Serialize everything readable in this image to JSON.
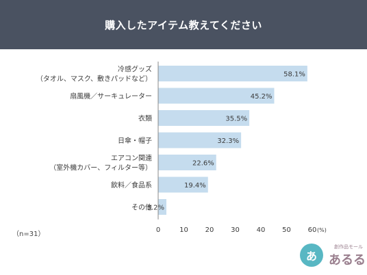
{
  "header": {
    "title": "購入したアイテム教えてください"
  },
  "note": "（n=31）",
  "logo": {
    "mark": "あ",
    "subtitle": "創作品モール",
    "name": "あるる"
  },
  "chart_data": {
    "type": "bar",
    "orientation": "horizontal",
    "categories": [
      [
        "冷感グッズ",
        "（タオル、マスク、敷きパッドなど）"
      ],
      [
        "扇風機／サーキュレーター"
      ],
      [
        "衣類"
      ],
      [
        "日傘・帽子"
      ],
      [
        "エアコン関連",
        "（室外機カバー、フィルター等）"
      ],
      [
        "飲料／食品系"
      ],
      [
        "その他"
      ]
    ],
    "values": [
      58.1,
      45.2,
      35.5,
      32.3,
      22.6,
      19.4,
      3.2
    ],
    "value_labels": [
      "58.1%",
      "45.2%",
      "35.5%",
      "32.3%",
      "22.6%",
      "19.4%",
      "3.2%"
    ],
    "xlim": [
      0,
      60
    ],
    "xticks": [
      0,
      10,
      20,
      30,
      40,
      50,
      60
    ],
    "xunit": "(%)",
    "grid": false,
    "colors": {
      "bar": "#c5dcee",
      "axis": "#888888",
      "text": "#3a3a3a"
    }
  }
}
